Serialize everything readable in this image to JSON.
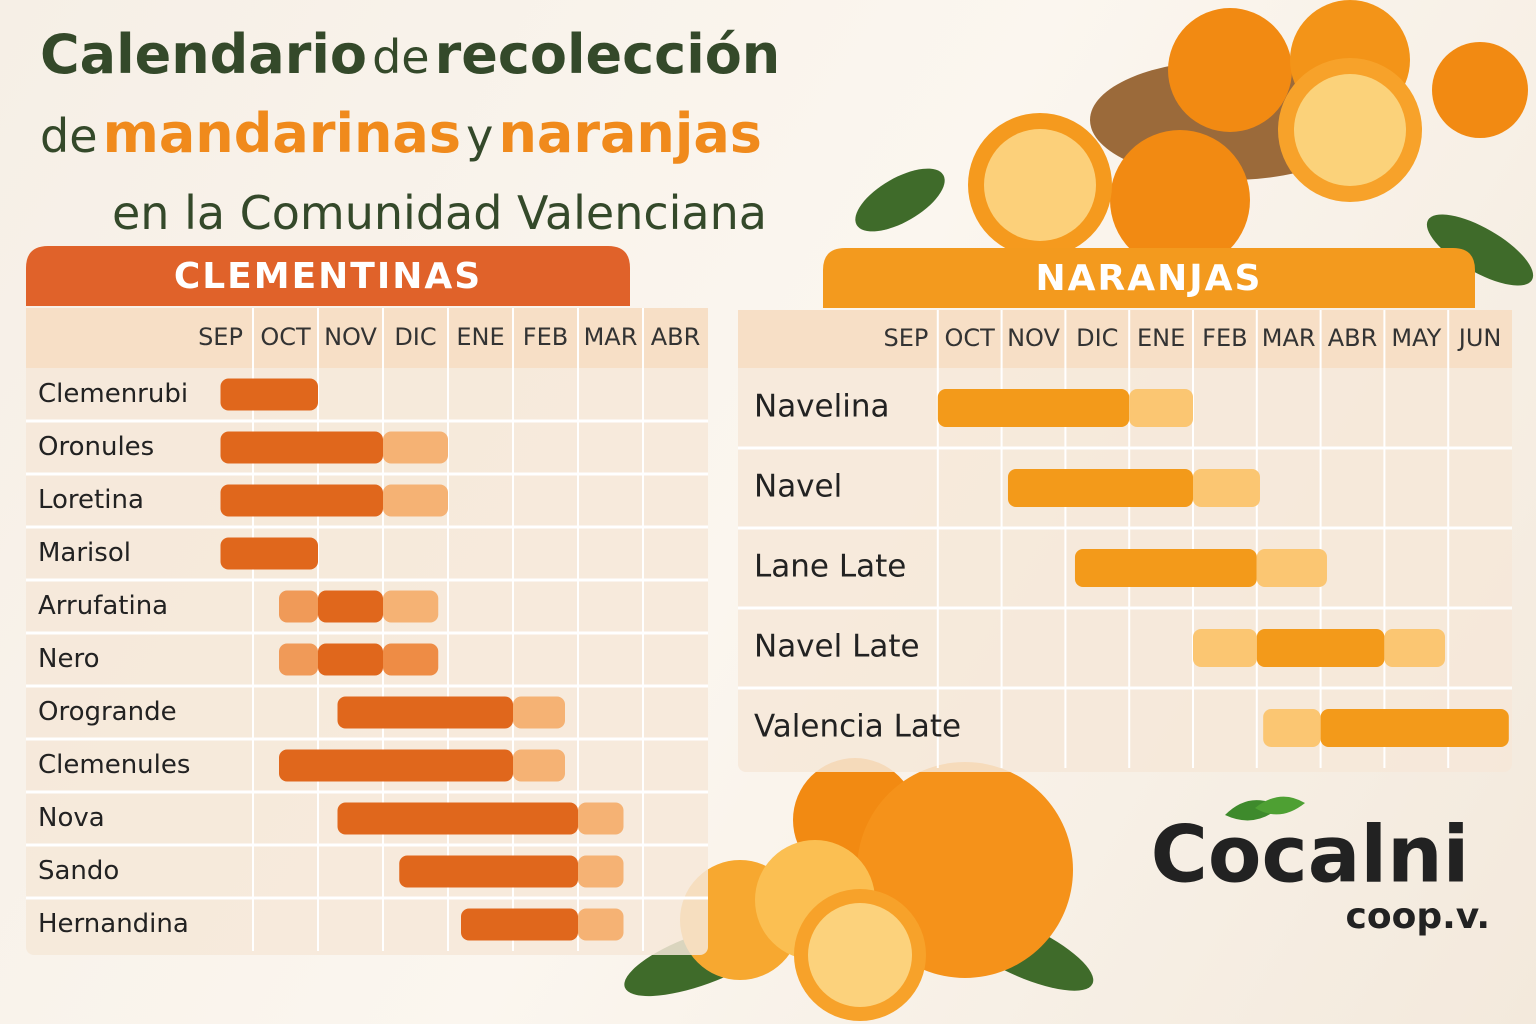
{
  "header": {
    "title": [
      "Calendario",
      "de",
      "recolección",
      "de",
      "mandarinas",
      "y",
      "naranjas",
      "en la Comunidad Valenciana"
    ]
  },
  "logo": {
    "name": "Cocalni",
    "suffix": "coop.v."
  },
  "chart_data": [
    {
      "type": "gantt",
      "title": "CLEMENTINAS",
      "title_color": "#e0622a",
      "months": [
        "SEP",
        "OCT",
        "NOV",
        "DIC",
        "ENE",
        "FEB",
        "MAR",
        "ABR"
      ],
      "rows": [
        {
          "name": "Clemenrubi",
          "bars": [
            {
              "start": 0.5,
              "end": 2,
              "color": "#e0671c"
            }
          ]
        },
        {
          "name": "Oronules",
          "bars": [
            {
              "start": 0.5,
              "end": 3,
              "color": "#e0671c"
            },
            {
              "start": 3,
              "end": 4,
              "color": "#f5b274"
            }
          ]
        },
        {
          "name": "Loretina",
          "bars": [
            {
              "start": 0.5,
              "end": 3,
              "color": "#e0671c"
            },
            {
              "start": 3,
              "end": 4,
              "color": "#f5b274"
            }
          ]
        },
        {
          "name": "Marisol",
          "bars": [
            {
              "start": 0.5,
              "end": 2,
              "color": "#e0671c"
            }
          ]
        },
        {
          "name": "Arrufatina",
          "bars": [
            {
              "start": 1.4,
              "end": 2,
              "color": "#f09a58"
            },
            {
              "start": 2,
              "end": 3,
              "color": "#e0671c"
            },
            {
              "start": 3,
              "end": 3.85,
              "color": "#f5b274"
            }
          ]
        },
        {
          "name": "Nero",
          "bars": [
            {
              "start": 1.4,
              "end": 2,
              "color": "#f09a58"
            },
            {
              "start": 2,
              "end": 3,
              "color": "#e0671c"
            },
            {
              "start": 3,
              "end": 3.85,
              "color": "#ee8c45"
            }
          ]
        },
        {
          "name": "Orogrande",
          "bars": [
            {
              "start": 2.3,
              "end": 5,
              "color": "#e0671c"
            },
            {
              "start": 5,
              "end": 5.8,
              "color": "#f5b274"
            }
          ]
        },
        {
          "name": "Clemenules",
          "bars": [
            {
              "start": 1.4,
              "end": 5,
              "color": "#e0671c"
            },
            {
              "start": 5,
              "end": 5.8,
              "color": "#f5b274"
            }
          ]
        },
        {
          "name": "Nova",
          "bars": [
            {
              "start": 2.3,
              "end": 6,
              "color": "#e0671c"
            },
            {
              "start": 6,
              "end": 6.7,
              "color": "#f5b274"
            }
          ]
        },
        {
          "name": "Sando",
          "bars": [
            {
              "start": 3.25,
              "end": 6,
              "color": "#e0671c"
            },
            {
              "start": 6,
              "end": 6.7,
              "color": "#f5b274"
            }
          ]
        },
        {
          "name": "Hernandina",
          "bars": [
            {
              "start": 4.2,
              "end": 6,
              "color": "#e0671c"
            },
            {
              "start": 6,
              "end": 6.7,
              "color": "#f5b274"
            }
          ]
        }
      ]
    },
    {
      "type": "gantt",
      "title": "NARANJAS",
      "title_color": "#f39a1e",
      "months": [
        "SEP",
        "OCT",
        "NOV",
        "DIC",
        "ENE",
        "FEB",
        "MAR",
        "ABR",
        "MAY",
        "JUN"
      ],
      "rows": [
        {
          "name": "Navelina",
          "bars": [
            {
              "start": 1,
              "end": 4,
              "color": "#f39a1a"
            },
            {
              "start": 4,
              "end": 5,
              "color": "#fbc672"
            }
          ]
        },
        {
          "name": "Navel",
          "bars": [
            {
              "start": 2.1,
              "end": 5,
              "color": "#f39a1a"
            },
            {
              "start": 5,
              "end": 6.05,
              "color": "#fbc672"
            }
          ]
        },
        {
          "name": "Lane Late",
          "bars": [
            {
              "start": 3.15,
              "end": 6,
              "color": "#f39a1a"
            },
            {
              "start": 6,
              "end": 7.1,
              "color": "#fbc672"
            }
          ]
        },
        {
          "name": "Navel Late",
          "bars": [
            {
              "start": 5,
              "end": 6,
              "color": "#fbc672"
            },
            {
              "start": 6,
              "end": 8,
              "color": "#f39a1a"
            },
            {
              "start": 8,
              "end": 8.95,
              "color": "#fbc672"
            }
          ]
        },
        {
          "name": "Valencia Late",
          "bars": [
            {
              "start": 6.1,
              "end": 7,
              "color": "#fbc672"
            },
            {
              "start": 7,
              "end": 9.95,
              "color": "#f39a1a"
            }
          ]
        }
      ]
    }
  ]
}
